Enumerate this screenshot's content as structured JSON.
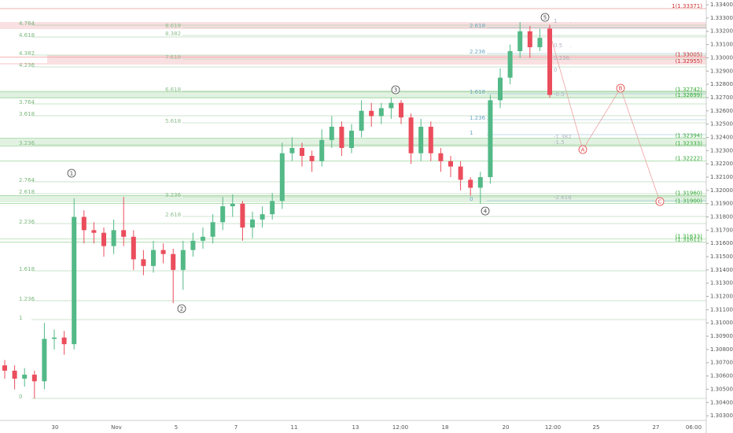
{
  "chart_data": {
    "type": "candlestick",
    "up_color": "#53b987",
    "down_color": "#eb4d5c",
    "open": [
      1.3068,
      1.3064,
      1.3058,
      1.3061,
      1.3056,
      1.3088,
      1.3089,
      1.3084,
      1.318,
      1.317,
      1.3168,
      1.3158,
      1.317,
      1.3165,
      1.3148,
      1.3143,
      1.3155,
      1.3152,
      1.314,
      1.3155,
      1.3162,
      1.3165,
      1.3176,
      1.3188,
      1.319,
      1.3172,
      1.3178,
      1.3182,
      1.3192,
      1.3228,
      1.3232,
      1.3226,
      1.3222,
      1.3238,
      1.3248,
      1.3232,
      1.3245,
      1.326,
      1.3256,
      1.3262,
      1.3266,
      1.3255,
      1.3228,
      1.3248,
      1.3228,
      1.3222,
      1.3218,
      1.3208,
      1.3202,
      1.321,
      1.3268,
      1.3285,
      1.3305,
      1.332,
      1.3308,
      1.3322
    ],
    "high": [
      1.3072,
      1.3068,
      1.3066,
      1.3064,
      1.31,
      1.3095,
      1.3094,
      1.3194,
      1.3185,
      1.3176,
      1.3172,
      1.3178,
      1.3195,
      1.317,
      1.3155,
      1.3162,
      1.316,
      1.3156,
      1.3162,
      1.3168,
      1.3172,
      1.3182,
      1.3195,
      1.3197,
      1.3192,
      1.3184,
      1.3188,
      1.3198,
      1.3236,
      1.324,
      1.3236,
      1.323,
      1.3246,
      1.3256,
      1.3252,
      1.325,
      1.3268,
      1.3266,
      1.3266,
      1.327,
      1.3268,
      1.3258,
      1.3254,
      1.3252,
      1.3232,
      1.3226,
      1.3222,
      1.321,
      1.3214,
      1.3272,
      1.3292,
      1.331,
      1.3327,
      1.3324,
      1.3322,
      1.3325
    ],
    "low": [
      1.3058,
      1.305,
      1.3052,
      1.3043,
      1.305,
      1.308,
      1.3076,
      1.308,
      1.316,
      1.316,
      1.315,
      1.3152,
      1.3158,
      1.314,
      1.3136,
      1.3138,
      1.3145,
      1.3115,
      1.3125,
      1.315,
      1.3156,
      1.316,
      1.317,
      1.318,
      1.3162,
      1.3164,
      1.3172,
      1.3178,
      1.3186,
      1.3222,
      1.3218,
      1.3214,
      1.3218,
      1.3232,
      1.3226,
      1.3228,
      1.324,
      1.3248,
      1.325,
      1.3254,
      1.325,
      1.322,
      1.3222,
      1.3222,
      1.3214,
      1.321,
      1.32,
      1.3196,
      1.319,
      1.3205,
      1.3262,
      1.328,
      1.33,
      1.33,
      1.3305,
      1.327
    ],
    "close": [
      1.3064,
      1.3058,
      1.3061,
      1.3056,
      1.3088,
      1.3089,
      1.3084,
      1.318,
      1.317,
      1.3168,
      1.3158,
      1.317,
      1.3165,
      1.3148,
      1.3143,
      1.3155,
      1.3152,
      1.314,
      1.3155,
      1.3162,
      1.3165,
      1.3176,
      1.3188,
      1.319,
      1.3172,
      1.3178,
      1.3182,
      1.3192,
      1.3228,
      1.3232,
      1.3226,
      1.3222,
      1.3238,
      1.3248,
      1.3232,
      1.3245,
      1.326,
      1.3256,
      1.3262,
      1.3266,
      1.3255,
      1.3228,
      1.3248,
      1.3228,
      1.3222,
      1.3218,
      1.3208,
      1.3202,
      1.321,
      1.3268,
      1.3285,
      1.3305,
      1.332,
      1.3308,
      1.3315,
      1.3272
    ],
    "ylim": [
      1.30265,
      1.33436
    ],
    "yticks": [
      {
        "value": 1.334,
        "label": "1.33400"
      },
      {
        "value": 1.333,
        "label": "1.33300"
      },
      {
        "value": 1.332,
        "label": "1.33200"
      },
      {
        "value": 1.331,
        "label": "1.33100"
      },
      {
        "value": 1.33,
        "label": "1.33000"
      },
      {
        "value": 1.329,
        "label": "1.32900"
      },
      {
        "value": 1.328,
        "label": "1.32800"
      },
      {
        "value": 1.327,
        "label": "1.32700"
      },
      {
        "value": 1.326,
        "label": "1.32600"
      },
      {
        "value": 1.325,
        "label": "1.32500"
      },
      {
        "value": 1.324,
        "label": "1.32400"
      },
      {
        "value": 1.323,
        "label": "1.32300"
      },
      {
        "value": 1.322,
        "label": "1.32200"
      },
      {
        "value": 1.321,
        "label": "1.32100"
      },
      {
        "value": 1.32,
        "label": "1.32000"
      },
      {
        "value": 1.319,
        "label": "1.31900"
      },
      {
        "value": 1.318,
        "label": "1.31800"
      },
      {
        "value": 1.317,
        "label": "1.31700"
      },
      {
        "value": 1.316,
        "label": "1.31600"
      },
      {
        "value": 1.315,
        "label": "1.31500"
      },
      {
        "value": 1.314,
        "label": "1.31400"
      },
      {
        "value": 1.313,
        "label": "1.31300"
      },
      {
        "value": 1.312,
        "label": "1.31200"
      },
      {
        "value": 1.311,
        "label": "1.31100"
      },
      {
        "value": 1.31,
        "label": "1.31000"
      },
      {
        "value": 1.309,
        "label": "1.30900"
      },
      {
        "value": 1.308,
        "label": "1.30800"
      },
      {
        "value": 1.307,
        "label": "1.30700"
      },
      {
        "value": 1.306,
        "label": "1.30600"
      },
      {
        "value": 1.305,
        "label": "1.30500"
      },
      {
        "value": 1.304,
        "label": "1.30400"
      },
      {
        "value": 1.303,
        "label": "1.30300"
      }
    ],
    "x_labels": [
      "30",
      "Nov",
      "5",
      "7",
      "11",
      "13",
      "12:00",
      "18",
      "20",
      "12:00",
      "25",
      "27",
      "06:00"
    ],
    "price_labels": [
      {
        "value": 1.33371,
        "label": "1(1.33371)"
      },
      {
        "value": 1.33005,
        "label": "(1.33005)"
      },
      {
        "value": 1.32955,
        "label": "(1.32955)"
      },
      {
        "value": 1.32742,
        "label": "(1.32742)"
      },
      {
        "value": 1.32699,
        "label": "(1.32699)"
      },
      {
        "value": 1.32394,
        "label": "(1.32394)"
      },
      {
        "value": 1.32333,
        "label": "(1.32333)"
      },
      {
        "value": 1.32222,
        "label": "(1.32222)"
      },
      {
        "value": 1.3196,
        "label": "(1.31960)"
      },
      {
        "value": 1.319,
        "label": "(1.31900)"
      },
      {
        "value": 1.31633,
        "label": "(1.31633)"
      },
      {
        "value": 1.31611,
        "label": "(1.31611)"
      }
    ],
    "fib_left": [
      4.764,
      4.618,
      4.382,
      4.236,
      3.764,
      3.618,
      3.236,
      2.764,
      2.618,
      2.236,
      1.618,
      1.236,
      1,
      0
    ],
    "fib_mid": [
      8.618,
      8.382,
      7.618,
      6.618,
      5.618,
      3.236,
      2.618
    ],
    "fib_right": [
      2.618,
      2.236,
      1.618,
      1.236,
      1,
      0
    ],
    "fib_far": [
      1,
      0.5,
      0.236,
      0,
      -0.5,
      -1.382,
      -1.5,
      -2.618
    ],
    "waves": [
      "1",
      "2",
      "3",
      "4",
      "5",
      "A",
      "B",
      "C"
    ]
  }
}
